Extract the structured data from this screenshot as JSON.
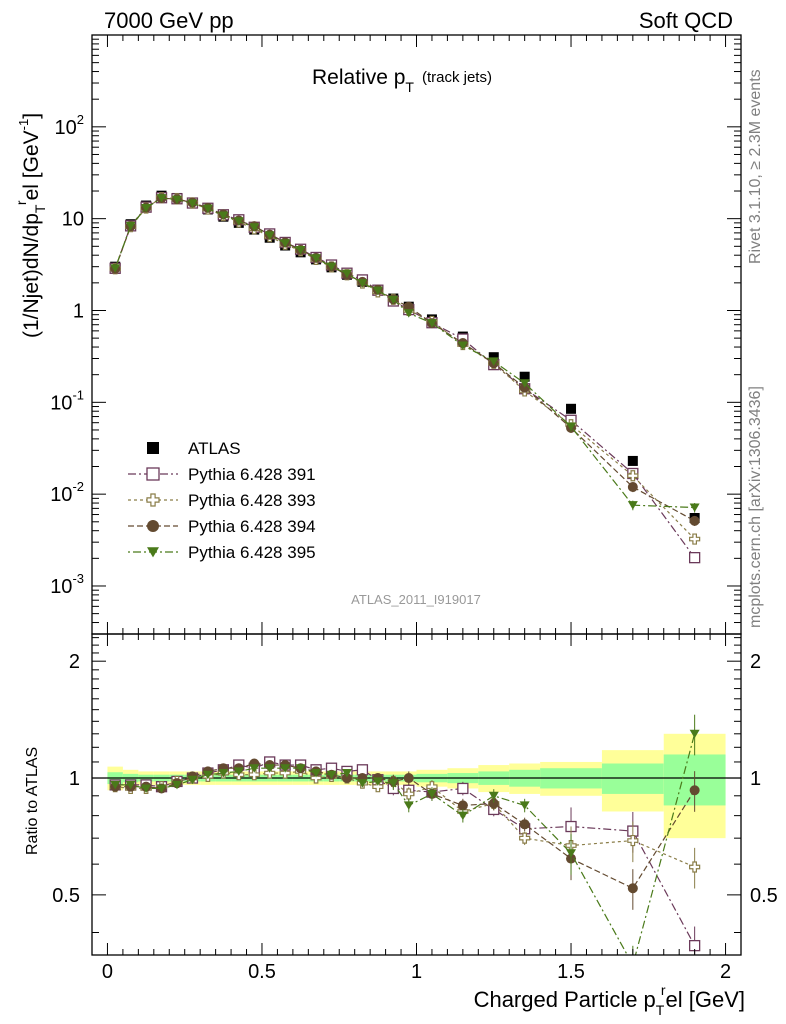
{
  "header": {
    "left": "7000 GeV pp",
    "right": "Soft QCD"
  },
  "side_labels": {
    "top": "Rivet 3.1.10, ≥ 2.3M events",
    "bottom": "mcplots.cern.ch [arXiv:1306.3436]"
  },
  "chart_data": {
    "type": "scatter",
    "title": "Relative p",
    "title_sub": "T",
    "title_suffix": "(track jets)",
    "analysis_label": "ATLAS_2011_I919017",
    "ylabel": "(1/Njet)dN/dp",
    "ylabel_sub": "T",
    "ylabel_sup": "r",
    "ylabel_tail": "el [GeV",
    "ylabel_tail_sup": "-1",
    "ylabel_close": "]",
    "ratio_ylabel": "Ratio to ATLAS",
    "xlabel": "Charged Particle p",
    "xlabel_sub": "T",
    "xlabel_sup": "r",
    "xlabel_tail": "el [GeV]",
    "xlim": [
      -0.05,
      2.05
    ],
    "ylim": [
      0.0003,
      1000
    ],
    "ylog": true,
    "ratio_ylim": [
      0.35,
      2.35
    ],
    "x_ticks": [
      "0",
      "0.5",
      "1",
      "1.5",
      "2"
    ],
    "y_ticks": [
      {
        "base": "10",
        "exp": "-3"
      },
      {
        "base": "10",
        "exp": "-2"
      },
      {
        "base": "10",
        "exp": "-1"
      },
      {
        "base": "1",
        "exp": ""
      },
      {
        "base": "10",
        "exp": ""
      },
      {
        "base": "10",
        "exp": "2"
      }
    ],
    "ratio_ticks": [
      "0.5",
      "1",
      "2"
    ],
    "x": [
      0.025,
      0.075,
      0.125,
      0.175,
      0.225,
      0.275,
      0.325,
      0.375,
      0.425,
      0.475,
      0.525,
      0.575,
      0.625,
      0.675,
      0.725,
      0.775,
      0.825,
      0.875,
      0.925,
      0.975,
      1.05,
      1.15,
      1.25,
      1.35,
      1.5,
      1.7,
      1.9
    ],
    "x_edges": [
      0,
      0.05,
      0.1,
      0.15,
      0.2,
      0.25,
      0.3,
      0.35,
      0.4,
      0.45,
      0.5,
      0.55,
      0.6,
      0.65,
      0.7,
      0.75,
      0.8,
      0.85,
      0.9,
      0.95,
      1.0,
      1.1,
      1.2,
      1.3,
      1.4,
      1.6,
      1.8,
      2.0
    ],
    "reference": {
      "name": "ATLAS",
      "values": [
        3.0,
        8.7,
        13.9,
        17.8,
        16.8,
        14.8,
        12.6,
        10.5,
        9.0,
        7.6,
        6.2,
        5.1,
        4.3,
        3.6,
        2.95,
        2.45,
        2.05,
        1.68,
        1.35,
        1.1,
        0.8,
        0.52,
        0.31,
        0.19,
        0.085,
        0.023,
        0.0055
      ]
    },
    "band_stat": [
      0.035,
      0.025,
      0.02,
      0.02,
      0.02,
      0.02,
      0.02,
      0.02,
      0.02,
      0.02,
      0.02,
      0.02,
      0.02,
      0.02,
      0.02,
      0.02,
      0.02,
      0.02,
      0.02,
      0.02,
      0.025,
      0.03,
      0.04,
      0.05,
      0.06,
      0.09,
      0.15,
      0.4
    ],
    "band_total": [
      0.07,
      0.05,
      0.04,
      0.04,
      0.04,
      0.04,
      0.04,
      0.04,
      0.04,
      0.04,
      0.04,
      0.04,
      0.04,
      0.04,
      0.04,
      0.04,
      0.04,
      0.04,
      0.04,
      0.04,
      0.05,
      0.06,
      0.08,
      0.09,
      0.1,
      0.18,
      0.3,
      0.7
    ],
    "series": [
      {
        "name": "Pythia 6.428 391",
        "marker": "open-square",
        "dash": "8,3,2,3",
        "ratio": [
          0.96,
          0.96,
          0.96,
          0.95,
          0.98,
          1.0,
          1.03,
          1.05,
          1.08,
          1.06,
          1.1,
          1.08,
          1.08,
          1.05,
          1.06,
          1.04,
          1.05,
          0.99,
          0.94,
          0.93,
          0.92,
          0.94,
          0.83,
          0.74,
          0.75,
          0.73,
          0.37
        ]
      },
      {
        "name": "Pythia 6.428 393",
        "marker": "open-cross",
        "dash": "3,3",
        "ratio": [
          0.95,
          0.94,
          0.94,
          0.95,
          0.98,
          1.0,
          1.01,
          1.03,
          1.02,
          1.02,
          1.03,
          1.03,
          1.04,
          1.0,
          1.01,
          1.0,
          0.97,
          0.95,
          0.98,
          0.91,
          0.95,
          0.82,
          0.86,
          0.7,
          0.67,
          0.69,
          0.59
        ]
      },
      {
        "name": "Pythia 6.428 394",
        "marker": "filled-circle",
        "dash": "6,3",
        "ratio": [
          0.95,
          0.95,
          0.95,
          0.94,
          0.97,
          1.01,
          1.04,
          1.06,
          1.06,
          1.09,
          1.08,
          1.08,
          1.06,
          1.04,
          1.02,
          1.0,
          1.0,
          1.0,
          0.98,
          1.0,
          0.91,
          0.85,
          0.86,
          0.76,
          0.62,
          0.52,
          0.93
        ]
      },
      {
        "name": "Pythia 6.428 395",
        "marker": "filled-triangle-down",
        "dash": "2,3,8,3",
        "ratio": [
          0.96,
          0.96,
          0.94,
          0.94,
          0.96,
          0.99,
          1.02,
          1.03,
          1.04,
          1.06,
          1.06,
          1.06,
          1.06,
          1.03,
          1.02,
          1.03,
          0.97,
          0.98,
          0.97,
          0.85,
          0.91,
          0.8,
          0.9,
          0.85,
          0.64,
          0.33,
          1.3
        ]
      }
    ],
    "legend": "left-middle",
    "grid": false,
    "colors": {
      "ATLAS": "#000000",
      "Pythia 6.428 391": "#6b3a5a",
      "Pythia 6.428 393": "#8a7d48",
      "Pythia 6.428 394": "#634a30",
      "Pythia 6.428 395": "#4a7a1a",
      "band_stat": "#99ff99",
      "band_total": "#ffff99",
      "analysis_label": "#999999",
      "side_label": "#808080"
    }
  }
}
